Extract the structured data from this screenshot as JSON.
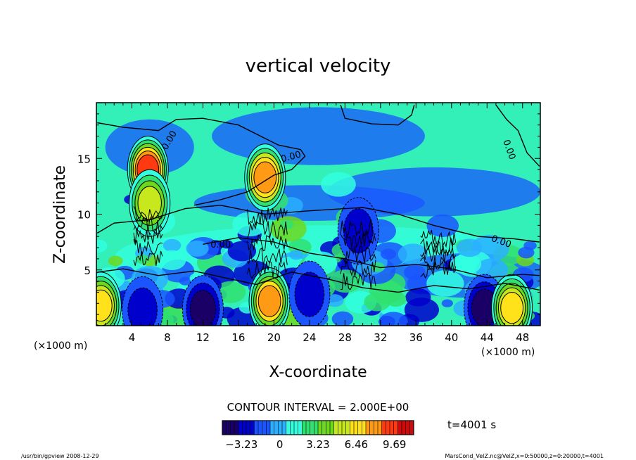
{
  "chart_data": {
    "type": "heatmap",
    "title": "vertical velocity",
    "xlabel": "X-coordinate",
    "ylabel": "Z-coordinate",
    "x_unit": "(×1000 m)",
    "z_unit": "(×1000 m)",
    "x_range": [
      0,
      50
    ],
    "z_range": [
      0,
      20
    ],
    "x_ticks": [
      "4",
      "8",
      "12",
      "16",
      "20",
      "24",
      "28",
      "32",
      "36",
      "40",
      "44",
      "48"
    ],
    "z_ticks": [
      "5",
      "10",
      "15"
    ],
    "contour_interval_text": "CONTOUR INTERVAL = 2.000E+00",
    "contour_labels": [
      "0.00",
      "0.00",
      "0.00",
      "0.00",
      "0.00"
    ],
    "time_label": "t=4001 s",
    "colorbar": {
      "range": [
        -4.85,
        11.31
      ],
      "tick_labels": [
        "−3.23",
        "0",
        "3.23",
        "6.46",
        "9.69"
      ],
      "tick_values": [
        -3.23,
        0,
        3.23,
        6.46,
        9.69
      ],
      "colors": [
        "#1a0066",
        "#0000cc",
        "#1a55ff",
        "#2ab0ff",
        "#33ffe0",
        "#30e070",
        "#6dd81e",
        "#c8e81e",
        "#ffe21a",
        "#ff9a14",
        "#ff3a10",
        "#d00a0a"
      ]
    },
    "features": [
      {
        "x": 5.8,
        "z": 14.0,
        "w": 9.0,
        "kind": "updraft"
      },
      {
        "x": 19.0,
        "z": 13.3,
        "w": 8.0,
        "kind": "updraft"
      },
      {
        "x": 6.0,
        "z": 11.0,
        "w": 5.0,
        "kind": "updraft"
      },
      {
        "x": 12.0,
        "z": 1.5,
        "w": -4.8,
        "kind": "downdraft"
      },
      {
        "x": 43.7,
        "z": 1.6,
        "w": -4.3,
        "kind": "downdraft"
      },
      {
        "x": 5.2,
        "z": 1.4,
        "w": -3.2,
        "kind": "downdraft"
      },
      {
        "x": 19.5,
        "z": 2.2,
        "w": 7.5,
        "kind": "updraft"
      },
      {
        "x": 46.8,
        "z": 1.6,
        "w": 7.0,
        "kind": "updraft"
      },
      {
        "x": 0.5,
        "z": 1.8,
        "w": 6.5,
        "kind": "updraft"
      },
      {
        "x": 24.0,
        "z": 2.8,
        "w": -2.5,
        "kind": "downdraft"
      },
      {
        "x": 29.5,
        "z": 8.5,
        "w": -2.5,
        "kind": "downdraft"
      }
    ]
  },
  "footer": {
    "left": "/usr/bin/gpview   2008-12-29",
    "right": "MarsCond_VelZ.nc@VelZ,x=0:50000,z=0:20000,t=4001"
  }
}
